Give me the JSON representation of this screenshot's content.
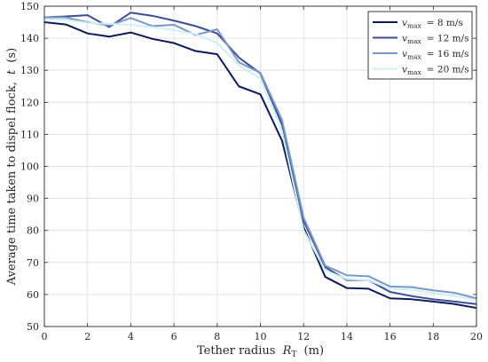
{
  "chart_data": {
    "type": "line",
    "xlabel": "Tether radius",
    "xlabel_symbol": "R",
    "xlabel_sub": "T",
    "xlabel_unit": "(m)",
    "ylabel": "Average time taken to dispel flock,",
    "ylabel_symbol": "t",
    "ylabel_unit": "(s)",
    "xlim": [
      0,
      20
    ],
    "ylim": [
      50,
      150
    ],
    "xticks": [
      0,
      2,
      4,
      6,
      8,
      10,
      12,
      14,
      16,
      18,
      20
    ],
    "yticks": [
      50,
      60,
      70,
      80,
      90,
      100,
      110,
      120,
      130,
      140,
      150
    ],
    "grid": true,
    "legend_position": "top-right",
    "x": [
      0,
      1,
      2,
      3,
      4,
      5,
      6,
      7,
      8,
      9,
      10,
      11,
      12,
      13,
      14,
      15,
      16,
      17,
      18,
      19,
      20
    ],
    "series": [
      {
        "name_symbol": "v",
        "name_sub": "max",
        "name_value": "= 8 m/s",
        "color": "#0b1a5c",
        "values": [
          145,
          144.3,
          141.5,
          140.5,
          141.8,
          139.8,
          138.5,
          136,
          135,
          125,
          122.5,
          108,
          81,
          65.5,
          62,
          61.8,
          58.8,
          58.5,
          57.8,
          57,
          55.8
        ]
      },
      {
        "name_symbol": "v",
        "name_sub": "max",
        "name_value": "= 12 m/s",
        "color": "#3b4e94",
        "values": [
          146.5,
          146.8,
          147.2,
          143.5,
          148,
          147,
          145.5,
          143.8,
          141.5,
          134,
          129,
          113,
          83,
          68.5,
          64.5,
          64.5,
          60.8,
          59.5,
          58.5,
          57.8,
          57
        ]
      },
      {
        "name_symbol": "v",
        "name_sub": "max",
        "name_value": "= 16 m/s",
        "color": "#7b97c9",
        "values": [
          146.5,
          146.5,
          145,
          144,
          146.3,
          143.8,
          144.2,
          141,
          142.8,
          132.5,
          129.2,
          114.5,
          84,
          69,
          66,
          65.7,
          62.5,
          62.3,
          61.3,
          60.5,
          58.8
        ]
      },
      {
        "name_symbol": "v",
        "name_sub": "max",
        "name_value": "= 20 m/s",
        "color": "#c9f0f4",
        "values": [
          146,
          145.8,
          144.8,
          144.5,
          144.2,
          143.5,
          142.5,
          141.3,
          138.5,
          131.5,
          127.5,
          111,
          80,
          67.5,
          64.8,
          64.5,
          61.8,
          61.5,
          60.5,
          59.5,
          58.3
        ]
      }
    ]
  }
}
